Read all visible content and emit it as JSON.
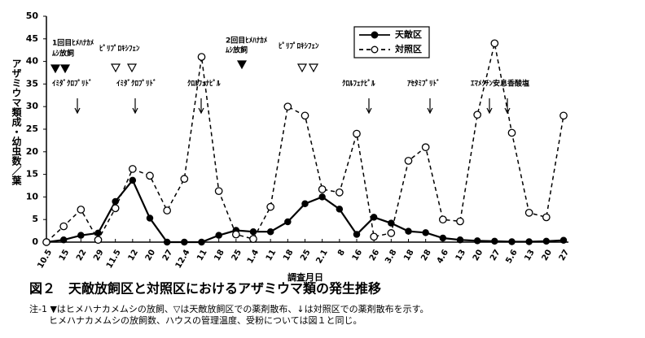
{
  "chart_data": {
    "type": "line",
    "legend": "top-right",
    "ylabel": "アザミウマ類成・幼虫数／葉",
    "xlabel": "調査月日",
    "categories": [
      "10.5",
      "15",
      "22",
      "29",
      "11.5",
      "12",
      "20",
      "27",
      "12.4",
      "11",
      "18",
      "25",
      "1.4",
      "11",
      "18",
      "25",
      "2.1",
      "8",
      "16",
      "26",
      "3.8",
      "18",
      "28",
      "4.6",
      "13",
      "20",
      "27",
      "5.6",
      "13",
      "20",
      "27"
    ],
    "series": [
      {
        "name": "天敵区",
        "color": "#000000",
        "style": "solid",
        "marker": "filled",
        "values": [
          0,
          0.5,
          1.5,
          2,
          9,
          13.7,
          5.3,
          0,
          0,
          0,
          1.5,
          2.6,
          2.3,
          2.3,
          4.5,
          8.5,
          10,
          7.3,
          1.7,
          5.5,
          4.2,
          2.4,
          2.1,
          0.9,
          0.5,
          0.3,
          0.2,
          0.1,
          0.1,
          0.2,
          0.4
        ]
      },
      {
        "name": "対照区",
        "color": "#000000",
        "style": "dashed",
        "marker": "open",
        "values": [
          0,
          3.5,
          7.2,
          0.5,
          7.5,
          16.2,
          14.7,
          7,
          14,
          41,
          11.3,
          1.7,
          0.7,
          7.8,
          30,
          28,
          11.7,
          11,
          24,
          1.2,
          2,
          18,
          21,
          5,
          4.6,
          28.2,
          44,
          24.2,
          6.5,
          5.5,
          28
        ]
      }
    ],
    "ylim": [
      0,
      50
    ],
    "yticks": [
      0,
      5,
      10,
      15,
      20,
      25,
      30,
      35,
      40,
      45,
      50
    ],
    "grid": false,
    "annotations": [
      "1回目ﾋﾒﾊﾅｶﾒ",
      "ﾑｼ放飼",
      "ﾋﾟﾘﾌﾟﾛｷｼﾌｪﾝ",
      "ｲﾐﾀﾞｸﾛﾌﾟﾘﾄﾞ",
      "ｲﾐﾀﾞｸﾛﾌﾟﾘﾄﾞ",
      "ｸﾛﾙﾌｪﾅﾋﾟﾙ",
      "2回目ﾋﾒﾊﾅｶﾒ",
      "ﾑｼ放飼",
      "ﾋﾟﾘﾌﾟﾛｷｼﾌｪﾝ",
      "ｸﾛﾙﾌｪﾅﾋﾟﾙ",
      "ｱｾﾀﾐﾌﾟﾘﾄﾞ",
      "ｴﾏﾒｸﾁﾝ安息香酸塩"
    ],
    "caption": "図２　天敵放飼区と対照区におけるアザミウマ類の発生推移",
    "notes": [
      "注-1 ▼はヒメハナカメムシの放飼、▽は天敵放飼区での薬剤散布、↓は対照区での薬剤散布を示す。",
      "ヒメハナカメムシの放飼数、ハウスの管理温度、受粉については図１と同じ。"
    ]
  }
}
